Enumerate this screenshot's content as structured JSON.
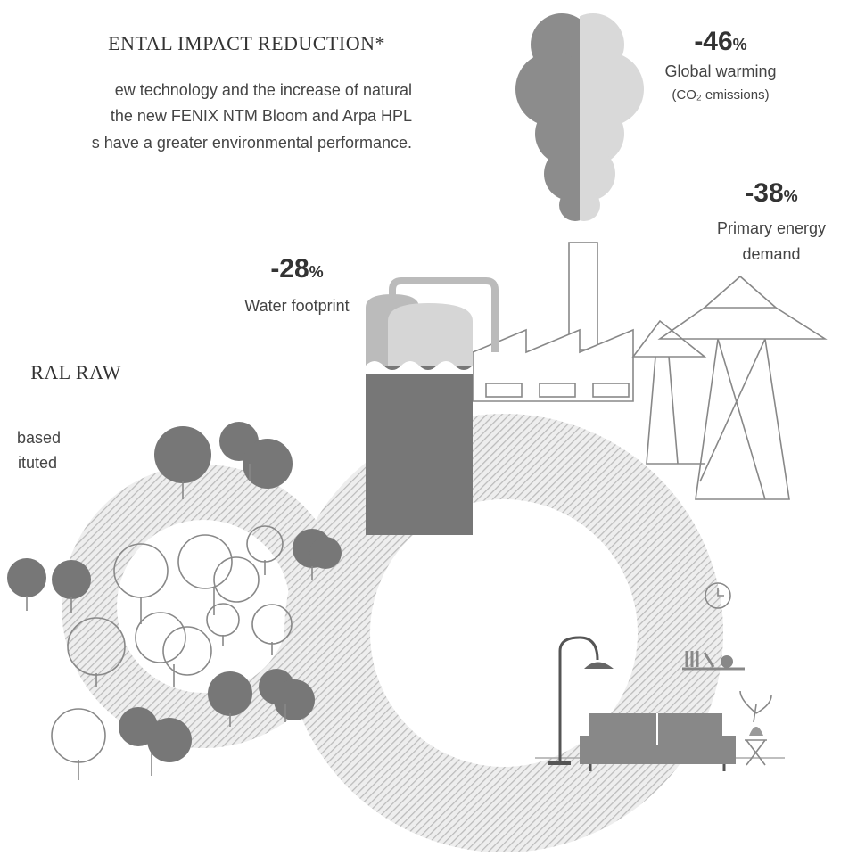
{
  "heading": "ENTAL IMPACT REDUCTION*",
  "intro": [
    "ew technology and the increase of natural",
    "the new FENIX NTM Bloom and Arpa HPL",
    "s have a greater environmental performance."
  ],
  "section": {
    "heading": "RAL RAW",
    "lines": [
      "based",
      "ituted"
    ]
  },
  "stats": [
    {
      "value": "-46",
      "unit": "%",
      "label": "Global warming",
      "note": "(CO₂ emissions)"
    },
    {
      "value": "-38",
      "unit": "%",
      "label": "Primary energy",
      "note": "demand"
    },
    {
      "value": "-28",
      "unit": "%",
      "label": "Water footprint"
    }
  ]
}
